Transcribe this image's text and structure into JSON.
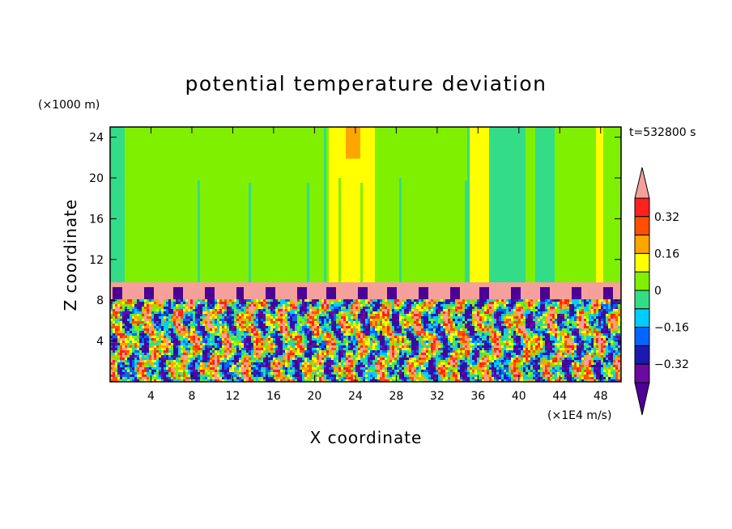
{
  "chart_data": {
    "type": "heatmap",
    "title": "potential temperature deviation",
    "xlabel": "X coordinate",
    "ylabel": "Z coordinate",
    "x_unit": "(×1E4 m/s)",
    "y_unit": "(×1000 m)",
    "time_label": "t=532800 s",
    "xlim": [
      0,
      50
    ],
    "ylim": [
      0,
      25
    ],
    "x_ticks": [
      4,
      8,
      12,
      16,
      20,
      24,
      28,
      32,
      36,
      40,
      44,
      48
    ],
    "y_ticks": [
      4,
      8,
      12,
      16,
      20,
      24
    ],
    "colorbar": {
      "levels": [
        -0.4,
        -0.32,
        -0.24,
        -0.16,
        -0.08,
        0,
        0.08,
        0.16,
        0.24,
        0.32,
        0.4
      ],
      "colors": [
        "#4d0094",
        "#6a0aa0",
        "#1a1ab0",
        "#0066ff",
        "#00ccff",
        "#33dd88",
        "#7ff000",
        "#ffff00",
        "#ffa500",
        "#ff5000",
        "#ff2020",
        "#f5a09a"
      ],
      "tick_labels": [
        "0.32",
        "0.16",
        "0",
        "−0.16",
        "−0.32"
      ],
      "tick_values": [
        0.32,
        0.16,
        0,
        -0.16,
        -0.32
      ],
      "extend": "both"
    },
    "layers": {
      "upper_background_level": 0.02,
      "inversion_band": {
        "z_bottom": 8.2,
        "z_top": 9.7,
        "value": 0.42
      },
      "boundary_layer_top": 8.2
    }
  }
}
